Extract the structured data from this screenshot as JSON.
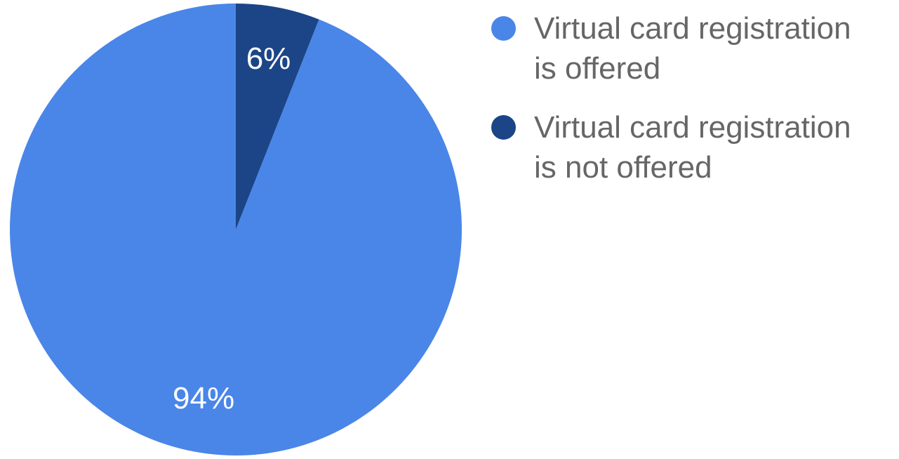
{
  "chart_data": {
    "type": "pie",
    "title": "",
    "slices": [
      {
        "label": "Virtual card registration\nis offered",
        "value": 94,
        "display": "94%",
        "color": "#4a86e8"
      },
      {
        "label": "Virtual card registration\nis not offered",
        "value": 6,
        "display": "6%",
        "color": "#1c4587"
      }
    ],
    "start_angle": "12 o'clock",
    "direction": "counterclockwise",
    "legend_position": "right",
    "legend_text_color": "#666666",
    "slice_label_color": "#ffffff"
  }
}
